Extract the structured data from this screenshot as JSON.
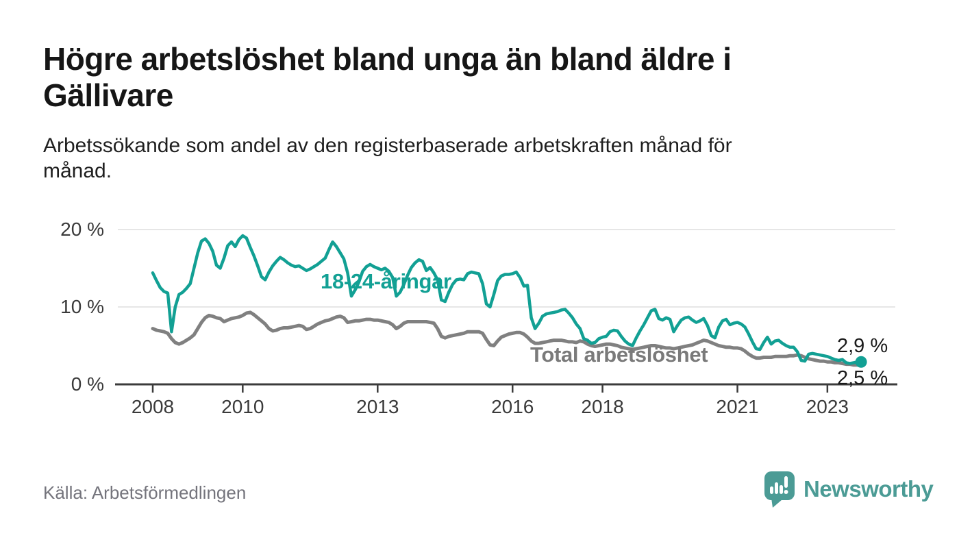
{
  "header": {
    "title": "Högre arbetslöshet bland unga än bland äldre i\nGällivare",
    "subtitle": "Arbetssökande som andel av den registerbaserade arbetskraften månad för\nmånad."
  },
  "footer": {
    "source": "Källa: Arbetsförmedlingen",
    "logo_text": "Newsworthy",
    "logo_icon": "newsworthy-speech-bubble-bar-chart-icon",
    "logo_color": "#4b9b95"
  },
  "colors": {
    "young_line": "#12a094",
    "total_line": "#808080",
    "grid": "#dddddd",
    "axis": "#3b3b3b",
    "value_label": "#1a1a1a",
    "tick_text": "#3a3a3a"
  },
  "chart_data": {
    "type": "line",
    "title": "Högre arbetslöshet bland unga än bland äldre i Gällivare",
    "subtitle": "Arbetssökande som andel av den registerbaserade arbetskraften månad för månad.",
    "unit": "%",
    "x_interval": "monthly",
    "x_start": "2008-01",
    "x_end": "2023-10",
    "grid": "horizontal",
    "legend": "inline-labels",
    "ylim": [
      0,
      21
    ],
    "y_ticks": [
      {
        "value": 0,
        "label": "0 %"
      },
      {
        "value": 10,
        "label": "10 %"
      },
      {
        "value": 20,
        "label": "20 %"
      }
    ],
    "x_ticks": [
      {
        "year": 2008,
        "label": "2008"
      },
      {
        "year": 2010,
        "label": "2010"
      },
      {
        "year": 2013,
        "label": "2013"
      },
      {
        "year": 2016,
        "label": "2016"
      },
      {
        "year": 2018,
        "label": "2018"
      },
      {
        "year": 2021,
        "label": "2021"
      },
      {
        "year": 2023,
        "label": "2023"
      }
    ],
    "series": [
      {
        "name": "18-24-åringar",
        "color": "#12a094",
        "end_value": 2.9,
        "end_label": "2,9 %",
        "end_dot": true,
        "values": [
          14.4,
          13.4,
          12.5,
          12.0,
          11.8,
          6.8,
          10.0,
          11.6,
          11.9,
          12.4,
          13.0,
          15.0,
          17.0,
          18.5,
          18.8,
          18.2,
          17.2,
          15.4,
          15.0,
          16.3,
          17.9,
          18.4,
          17.8,
          18.7,
          19.2,
          18.9,
          17.7,
          16.6,
          15.3,
          13.9,
          13.5,
          14.5,
          15.3,
          15.9,
          16.4,
          16.1,
          15.7,
          15.4,
          15.2,
          15.3,
          15.0,
          14.7,
          14.9,
          15.2,
          15.5,
          15.9,
          16.3,
          17.4,
          18.4,
          17.8,
          17.0,
          16.2,
          14.4,
          11.4,
          12.2,
          13.2,
          14.6,
          15.2,
          15.5,
          15.2,
          15.0,
          14.8,
          15.0,
          14.6,
          13.8,
          11.4,
          11.9,
          12.9,
          14.1,
          15.1,
          15.7,
          16.1,
          15.9,
          14.7,
          15.1,
          14.4,
          13.5,
          10.9,
          10.7,
          11.9,
          12.9,
          13.5,
          13.6,
          13.5,
          14.3,
          14.5,
          14.4,
          14.3,
          13.0,
          10.4,
          10.0,
          11.6,
          13.4,
          14.0,
          14.2,
          14.2,
          14.3,
          14.5,
          13.8,
          12.7,
          12.8,
          8.6,
          7.2,
          7.9,
          8.8,
          9.1,
          9.2,
          9.3,
          9.4,
          9.6,
          9.7,
          9.2,
          8.6,
          7.8,
          7.2,
          5.9,
          5.7,
          5.3,
          5.4,
          5.9,
          6.1,
          6.2,
          6.8,
          7.0,
          6.9,
          6.2,
          5.6,
          5.2,
          5.0,
          6.0,
          6.9,
          7.7,
          8.6,
          9.5,
          9.7,
          8.5,
          8.3,
          8.6,
          8.4,
          6.8,
          7.6,
          8.3,
          8.6,
          8.7,
          8.3,
          8.0,
          8.2,
          8.5,
          7.6,
          6.3,
          6.0,
          7.4,
          8.2,
          8.4,
          7.7,
          7.9,
          8.0,
          7.8,
          7.4,
          6.5,
          5.5,
          4.6,
          4.5,
          5.4,
          6.1,
          5.2,
          5.6,
          5.7,
          5.3,
          5.0,
          4.8,
          4.8,
          4.2,
          3.1,
          3.0,
          3.9,
          4.0,
          3.9,
          3.8,
          3.7,
          3.6,
          3.4,
          3.2,
          3.1,
          3.2,
          2.8,
          2.7,
          2.8,
          2.9,
          2.9
        ]
      },
      {
        "name": "Total arbetslöshet",
        "color": "#808080",
        "end_value": 2.5,
        "end_label": "2,5 %",
        "end_dot": false,
        "values": [
          7.2,
          7.0,
          6.9,
          6.8,
          6.6,
          5.9,
          5.4,
          5.2,
          5.4,
          5.7,
          6.0,
          6.4,
          7.2,
          8.0,
          8.6,
          8.9,
          8.8,
          8.6,
          8.5,
          8.1,
          8.3,
          8.5,
          8.6,
          8.7,
          8.9,
          9.2,
          9.3,
          9.0,
          8.6,
          8.2,
          7.8,
          7.2,
          6.9,
          7.0,
          7.2,
          7.3,
          7.3,
          7.4,
          7.5,
          7.6,
          7.5,
          7.1,
          7.2,
          7.5,
          7.8,
          8.0,
          8.2,
          8.3,
          8.5,
          8.7,
          8.8,
          8.6,
          8.0,
          8.1,
          8.2,
          8.2,
          8.3,
          8.4,
          8.4,
          8.3,
          8.3,
          8.2,
          8.1,
          8.0,
          7.7,
          7.2,
          7.5,
          7.9,
          8.1,
          8.1,
          8.1,
          8.1,
          8.1,
          8.1,
          8.0,
          7.9,
          7.2,
          6.2,
          6.0,
          6.2,
          6.3,
          6.4,
          6.5,
          6.6,
          6.8,
          6.8,
          6.8,
          6.8,
          6.6,
          5.8,
          5.1,
          5.0,
          5.6,
          6.1,
          6.3,
          6.5,
          6.6,
          6.7,
          6.7,
          6.5,
          6.1,
          5.6,
          5.3,
          5.3,
          5.4,
          5.5,
          5.6,
          5.7,
          5.7,
          5.7,
          5.6,
          5.5,
          5.5,
          5.4,
          5.6,
          5.5,
          5.2,
          5.0,
          4.9,
          5.0,
          5.1,
          5.2,
          5.2,
          5.1,
          5.0,
          4.8,
          4.7,
          4.6,
          4.5,
          4.6,
          4.7,
          4.8,
          4.9,
          5.0,
          5.0,
          4.9,
          4.8,
          4.7,
          4.7,
          4.6,
          4.7,
          4.8,
          4.9,
          5.0,
          5.1,
          5.3,
          5.5,
          5.7,
          5.6,
          5.4,
          5.2,
          5.0,
          4.9,
          4.8,
          4.8,
          4.7,
          4.7,
          4.6,
          4.3,
          3.9,
          3.6,
          3.4,
          3.4,
          3.5,
          3.5,
          3.5,
          3.6,
          3.6,
          3.6,
          3.6,
          3.7,
          3.7,
          3.8,
          3.7,
          3.5,
          3.3,
          3.2,
          3.1,
          3.0,
          3.0,
          2.9,
          2.9,
          2.8,
          2.8,
          2.7,
          2.6,
          2.6,
          2.5,
          2.5,
          2.5
        ]
      }
    ]
  }
}
